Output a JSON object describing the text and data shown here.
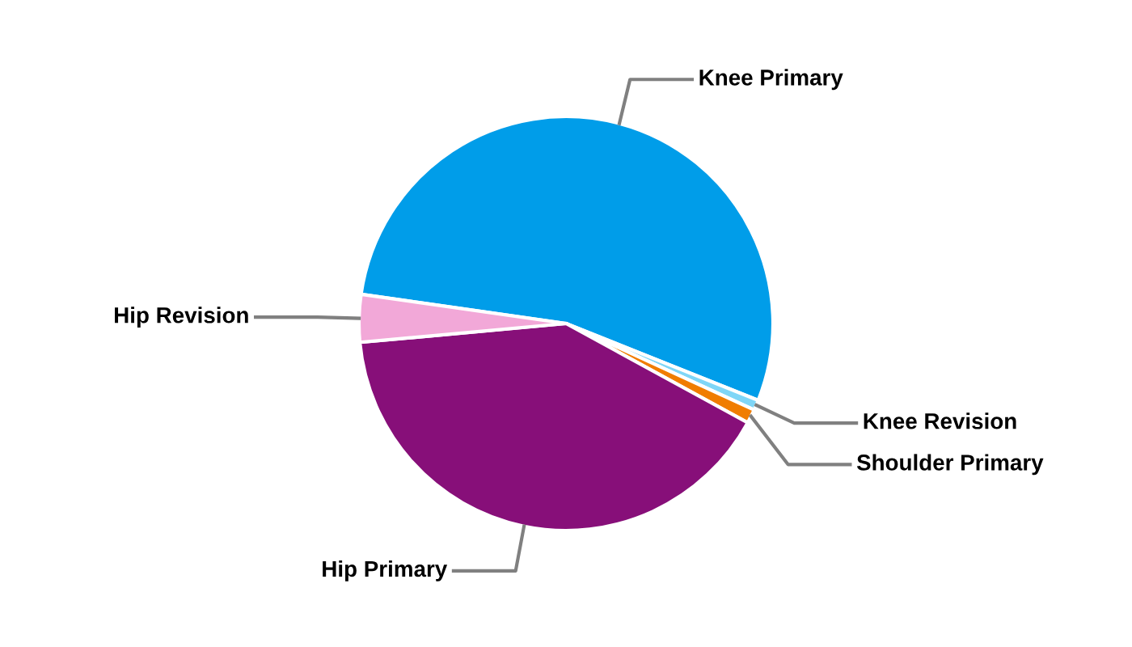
{
  "chart_data": {
    "type": "pie",
    "categories": [
      "Knee Primary",
      "Knee Revision",
      "Shoulder Primary",
      "Hip Primary",
      "Hip Revision"
    ],
    "values": [
      53.8,
      0.8,
      1.1,
      40.6,
      3.7
    ],
    "colors": [
      "#009de9",
      "#7fd6f7",
      "#f07d00",
      "#870f79",
      "#f2a8d8"
    ]
  }
}
